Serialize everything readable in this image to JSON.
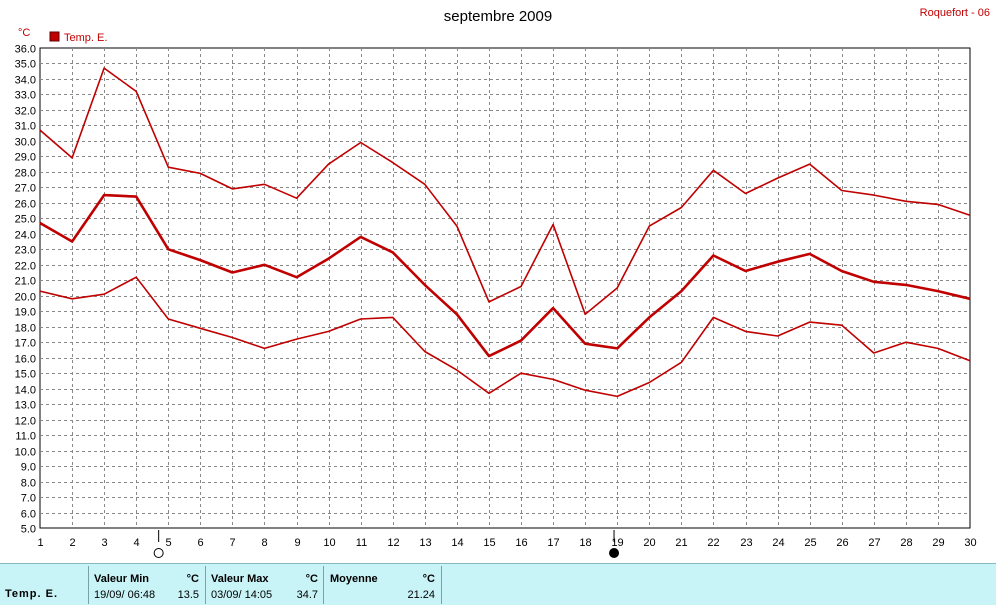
{
  "title": "septembre 2009",
  "station": "Roquefort - 06",
  "unit": "°C",
  "legend": {
    "label": "Temp. E.",
    "color": "#c00000"
  },
  "chart_data": {
    "type": "line",
    "title": "septembre 2009",
    "xlabel": "",
    "ylabel": "°C",
    "x": [
      1,
      2,
      3,
      4,
      5,
      6,
      7,
      8,
      9,
      10,
      11,
      12,
      13,
      14,
      15,
      16,
      17,
      18,
      19,
      20,
      21,
      22,
      23,
      24,
      25,
      26,
      27,
      28,
      29,
      30
    ],
    "xlim": [
      1,
      30
    ],
    "ylim": [
      5,
      36
    ],
    "ytick_step": 1,
    "grid": true,
    "legend_position": "top-left",
    "series": [
      {
        "name": "Temp. E.",
        "role": "max",
        "values": [
          30.7,
          28.9,
          34.7,
          33.2,
          28.3,
          27.9,
          26.9,
          27.2,
          26.3,
          28.5,
          29.9,
          28.6,
          27.2,
          24.5,
          19.6,
          20.6,
          24.6,
          18.8,
          20.5,
          24.5,
          25.7,
          28.1,
          26.6,
          27.6,
          28.5,
          26.8,
          26.5,
          26.1,
          25.9,
          25.2
        ]
      },
      {
        "name": "Temp. E.",
        "role": "mean",
        "values": [
          24.7,
          23.5,
          26.5,
          26.4,
          23.0,
          22.3,
          21.5,
          22.0,
          21.2,
          22.4,
          23.8,
          22.8,
          20.7,
          18.8,
          16.1,
          17.1,
          19.2,
          16.9,
          16.6,
          18.6,
          20.3,
          22.6,
          21.6,
          22.2,
          22.7,
          21.6,
          20.9,
          20.7,
          20.3,
          19.8
        ]
      },
      {
        "name": "Temp. E.",
        "role": "min",
        "values": [
          20.3,
          19.8,
          20.1,
          21.2,
          18.5,
          17.9,
          17.3,
          16.6,
          17.2,
          17.7,
          18.5,
          18.6,
          16.4,
          15.2,
          13.7,
          15.0,
          14.6,
          13.9,
          13.5,
          14.4,
          15.7,
          18.6,
          17.7,
          17.4,
          18.3,
          18.1,
          16.3,
          17.0,
          16.6,
          15.8
        ]
      }
    ],
    "moon_phases": [
      {
        "day": 4.7,
        "icon": "full-moon-icon"
      },
      {
        "day": 18.9,
        "icon": "new-moon-icon"
      }
    ]
  },
  "stats": {
    "series_label": "Temp. E.",
    "min": {
      "label": "Valeur Min",
      "unit": "°C",
      "date": "19/09/ 06:48",
      "value": "13.5"
    },
    "max": {
      "label": "Valeur Max",
      "unit": "°C",
      "date": "03/09/ 14:05",
      "value": "34.7"
    },
    "avg": {
      "label": "Moyenne",
      "unit": "°C",
      "value": "21.24"
    }
  }
}
